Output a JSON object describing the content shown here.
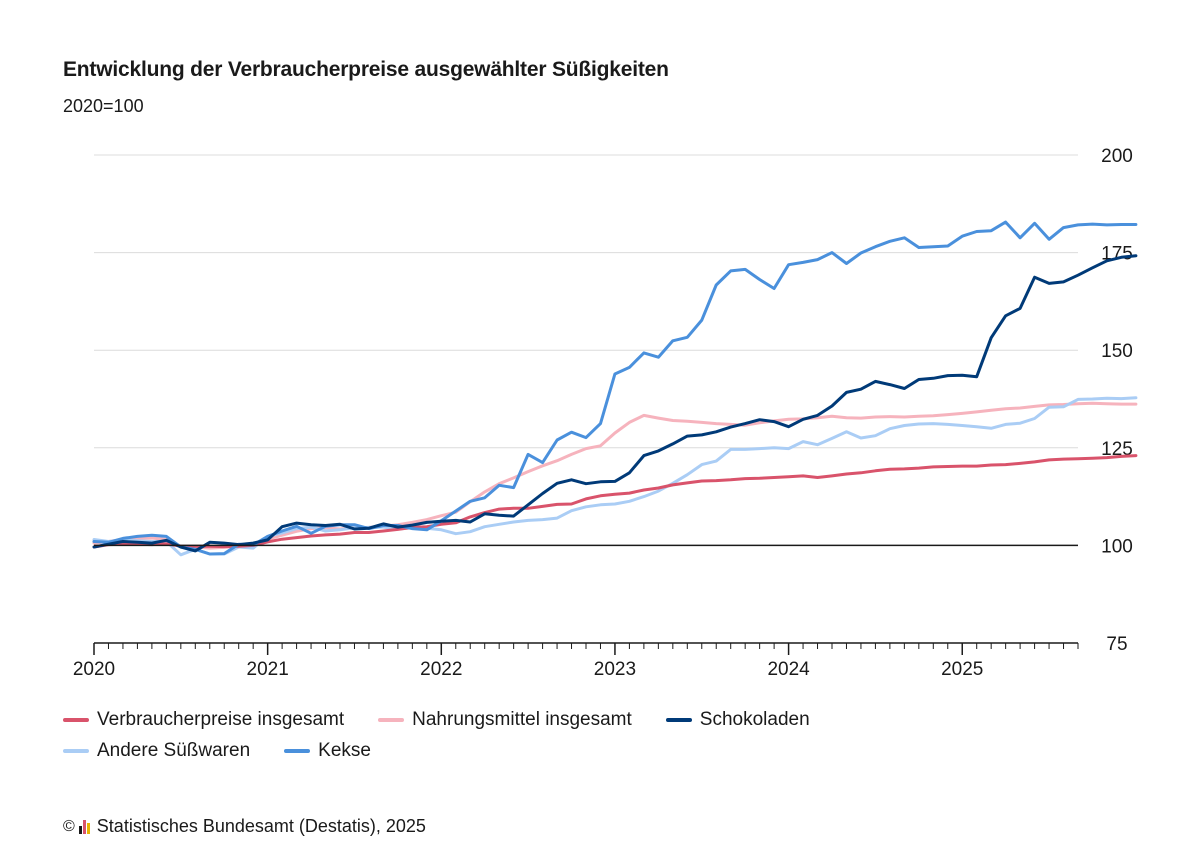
{
  "header": {
    "title": "Entwicklung der Verbraucherpreise ausgewählter Süßigkeiten",
    "subtitle": "2020=100"
  },
  "footer": {
    "copyright_symbol": "©",
    "source": "Statistisches Bundesamt (Destatis), 2025"
  },
  "chart_data": {
    "type": "line",
    "title": "Entwicklung der Verbraucherpreise ausgewählter Süßigkeiten",
    "subtitle": "2020=100",
    "x_start": "2020-01",
    "x_end": "2025-09",
    "x_tick_labels": [
      "2020",
      "2021",
      "2022",
      "2023",
      "2024",
      "2025"
    ],
    "y_ticks": [
      75,
      100,
      125,
      150,
      175,
      200
    ],
    "ylim": [
      75,
      200
    ],
    "y_axis_position": "right",
    "grid": true,
    "reference_line": 100,
    "legend_position": "bottom",
    "series": [
      {
        "name": "Verbraucherpreise insgesamt",
        "color": "#d9536b",
        "values": [
          99.6,
          100.2,
          100.3,
          100.3,
          100.2,
          100.4,
          99.8,
          99.8,
          99.8,
          99.7,
          99.8,
          100.0,
          100.9,
          101.6,
          102.0,
          102.4,
          102.7,
          102.9,
          103.3,
          103.3,
          103.7,
          104.1,
          104.6,
          104.8,
          105.4,
          105.8,
          107.3,
          108.4,
          109.3,
          109.5,
          109.5,
          110.0,
          110.5,
          110.6,
          111.9,
          112.7,
          113.1,
          113.4,
          114.2,
          114.7,
          115.5,
          116.0,
          116.5,
          116.6,
          116.8,
          117.1,
          117.2,
          117.4,
          117.6,
          117.8,
          117.4,
          117.8,
          118.3,
          118.6,
          119.1,
          119.5,
          119.6,
          119.8,
          120.1,
          120.2,
          120.3,
          120.3,
          120.6,
          120.7,
          121.0,
          121.4,
          121.9,
          122.1,
          122.2,
          122.3,
          122.5,
          122.8,
          123.0
        ]
      },
      {
        "name": "Nahrungsmittel insgesamt",
        "color": "#f6b3bd",
        "values": [
          100.6,
          101.0,
          101.5,
          101.8,
          101.9,
          101.5,
          99.8,
          99.6,
          99.3,
          99.5,
          99.8,
          100.3,
          101.6,
          102.6,
          103.6,
          104.3,
          104.5,
          104.2,
          104.5,
          104.6,
          104.9,
          105.3,
          105.9,
          106.6,
          107.6,
          108.5,
          111.2,
          113.7,
          115.8,
          117.3,
          118.9,
          120.4,
          121.7,
          123.3,
          124.8,
          125.5,
          128.8,
          131.5,
          133.3,
          132.6,
          132.0,
          131.8,
          131.5,
          131.2,
          131.0,
          130.8,
          131.4,
          131.9,
          132.3,
          132.4,
          132.7,
          133.1,
          132.7,
          132.6,
          132.9,
          133.0,
          132.9,
          133.1,
          133.2,
          133.5,
          133.8,
          134.2,
          134.6,
          135.0,
          135.2,
          135.6,
          136.0,
          136.1,
          136.3,
          136.4,
          136.3,
          136.2,
          136.2
        ]
      },
      {
        "name": "Schokoladen",
        "color": "#003a78",
        "values": [
          99.6,
          100.3,
          101.0,
          100.8,
          100.6,
          101.3,
          99.6,
          98.6,
          100.8,
          100.6,
          100.2,
          100.6,
          101.4,
          104.8,
          105.7,
          105.3,
          105.1,
          105.4,
          104.2,
          104.4,
          105.5,
          104.7,
          105.2,
          105.9,
          106.2,
          106.4,
          106.0,
          108.1,
          107.7,
          107.5,
          110.4,
          113.3,
          115.9,
          116.8,
          115.8,
          116.3,
          116.4,
          118.6,
          123.0,
          124.2,
          126.0,
          128.0,
          128.3,
          129.1,
          130.3,
          131.2,
          132.2,
          131.7,
          130.4,
          132.3,
          133.3,
          135.7,
          139.2,
          140.0,
          142.0,
          141.2,
          140.2,
          142.5,
          142.8,
          143.5,
          143.6,
          143.2,
          153.2,
          158.8,
          160.7,
          168.7,
          167.1,
          167.5,
          169.2,
          171.1,
          172.9,
          173.8,
          174.2
        ]
      },
      {
        "name": "Andere Süßwaren",
        "color": "#aacdf5",
        "values": [
          101.5,
          101.0,
          101.3,
          101.2,
          101.0,
          101.0,
          97.6,
          99.0,
          97.8,
          97.8,
          99.6,
          99.3,
          102.3,
          103.2,
          104.3,
          104.7,
          103.7,
          104.0,
          104.5,
          104.6,
          104.7,
          104.2,
          104.5,
          104.4,
          104.0,
          103.0,
          103.5,
          104.8,
          105.4,
          106.0,
          106.4,
          106.6,
          107.0,
          108.9,
          109.9,
          110.4,
          110.6,
          111.3,
          112.5,
          113.9,
          115.9,
          118.1,
          120.7,
          121.6,
          124.6,
          124.6,
          124.8,
          125.0,
          124.8,
          126.6,
          125.8,
          127.4,
          129.1,
          127.5,
          128.1,
          129.9,
          130.7,
          131.1,
          131.2,
          131.0,
          130.7,
          130.4,
          130.0,
          131.0,
          131.3,
          132.5,
          135.4,
          135.5,
          137.4,
          137.5,
          137.7,
          137.6,
          137.8
        ]
      },
      {
        "name": "Kekse",
        "color": "#4a90dc",
        "values": [
          101.0,
          100.8,
          101.8,
          102.3,
          102.6,
          102.3,
          99.6,
          99.0,
          97.8,
          97.9,
          100.3,
          100.1,
          102.3,
          103.7,
          104.9,
          103.1,
          104.9,
          105.3,
          105.3,
          104.3,
          105.1,
          105.1,
          104.3,
          104.0,
          106.3,
          108.8,
          111.3,
          112.2,
          115.4,
          114.8,
          123.3,
          121.2,
          127.0,
          129.0,
          127.6,
          131.2,
          143.9,
          145.6,
          149.3,
          148.2,
          152.4,
          153.3,
          157.7,
          166.7,
          170.3,
          170.7,
          168.1,
          165.8,
          171.9,
          172.5,
          173.2,
          175.0,
          172.2,
          174.9,
          176.5,
          177.9,
          178.8,
          176.3,
          176.5,
          176.7,
          179.2,
          180.4,
          180.6,
          182.8,
          178.8,
          182.5,
          178.4,
          181.4,
          182.1,
          182.3,
          182.1,
          182.2,
          182.2
        ]
      }
    ]
  },
  "legend": {
    "rows": [
      [
        "Verbraucherpreise insgesamt",
        "Nahrungsmittel insgesamt",
        "Schokoladen"
      ],
      [
        "Andere Süßwaren",
        "Kekse"
      ]
    ]
  }
}
